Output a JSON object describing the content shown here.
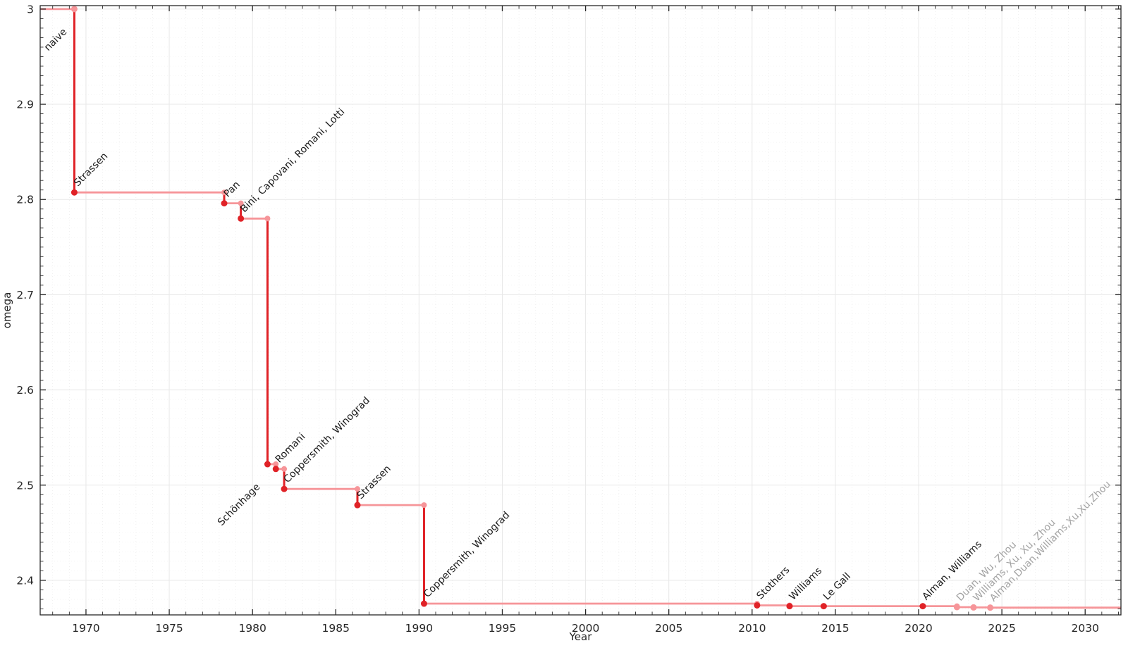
{
  "chart_data": {
    "type": "line",
    "subtype": "step-post-record-history",
    "title": "",
    "xlabel": "Year",
    "ylabel": "omega",
    "xlim": [
      1967.25,
      2032.15
    ],
    "ylim": [
      2.3637,
      3.0036
    ],
    "x_tick_values": [
      1970,
      1975,
      1980,
      1985,
      1990,
      1995,
      2000,
      2005,
      2010,
      2015,
      2020,
      2025,
      2030
    ],
    "x_tick_labels": [
      "1970",
      "1975",
      "1980",
      "1985",
      "1990",
      "1995",
      "2000",
      "2005",
      "2010",
      "2015",
      "2020",
      "2025",
      "2030"
    ],
    "x_minor_tick_step": 1,
    "y_tick_values": [
      3.0,
      2.9,
      2.8,
      2.7,
      2.6,
      2.5,
      2.4
    ],
    "y_tick_labels": [
      "3",
      "2.9",
      "2.8",
      "2.7",
      "2.6",
      "2.5",
      "2.4"
    ],
    "y_minor_tick_step": 0.01,
    "grid": {
      "major": true,
      "minor": true,
      "minor_style": "dotted"
    },
    "legend_position": "none",
    "start_omega": 3.0,
    "records": [
      {
        "label": "naive",
        "year": 1969.3,
        "omega": 3.0,
        "marker": "light",
        "label_side": "below-left",
        "provisional": false
      },
      {
        "label": "Strassen",
        "year": 1969.3,
        "omega": 2.8074,
        "marker": "dark",
        "label_side": "above-right",
        "provisional": false
      },
      {
        "label": "Pan",
        "year": 1978.3,
        "omega": 2.796,
        "marker": "dark",
        "label_side": "above-right",
        "provisional": false
      },
      {
        "label": "Bini, Capovani, Romani, Lotti",
        "year": 1979.3,
        "omega": 2.78,
        "marker": "dark",
        "label_side": "above-right",
        "provisional": false
      },
      {
        "label": "Schönhage",
        "year": 1980.9,
        "omega": 2.522,
        "marker": "dark",
        "label_side": "below-left",
        "provisional": false
      },
      {
        "label": "Romani",
        "year": 1981.4,
        "omega": 2.517,
        "marker": "dark",
        "label_side": "above-right",
        "provisional": false
      },
      {
        "label": "Coppersmith, Winograd",
        "year": 1981.9,
        "omega": 2.496,
        "marker": "dark",
        "label_side": "above-right",
        "provisional": false
      },
      {
        "label": "Strassen",
        "year": 1986.3,
        "omega": 2.479,
        "marker": "dark",
        "label_side": "above-right",
        "provisional": false
      },
      {
        "label": "Coppersmith, Winograd",
        "year": 1990.3,
        "omega": 2.3755,
        "marker": "dark",
        "label_side": "above-right",
        "provisional": false
      },
      {
        "label": "Stothers",
        "year": 2010.3,
        "omega": 2.3737,
        "marker": "dark",
        "label_side": "above-right",
        "provisional": false
      },
      {
        "label": "Williams",
        "year": 2012.25,
        "omega": 2.3729,
        "marker": "dark",
        "label_side": "above-right",
        "provisional": false
      },
      {
        "label": "Le Gall",
        "year": 2014.3,
        "omega": 2.3728639,
        "marker": "dark",
        "label_side": "above-right",
        "provisional": false
      },
      {
        "label": "Alman, Williams",
        "year": 2020.25,
        "omega": 2.3728596,
        "marker": "dark",
        "label_side": "above-right",
        "provisional": false
      },
      {
        "label": "Duan, Wu, Zhou",
        "year": 2022.3,
        "omega": 2.371866,
        "marker": "light",
        "label_side": "above-right",
        "provisional": true
      },
      {
        "label": "Williams, Xu, Xu, Zhou",
        "year": 2023.3,
        "omega": 2.371552,
        "marker": "light",
        "label_side": "above-right",
        "provisional": true
      },
      {
        "label": "Alman,Duan,Williams,Xu,Xu,Zhou",
        "year": 2024.3,
        "omega": 2.371339,
        "marker": "light",
        "label_side": "above-right",
        "provisional": true
      }
    ],
    "colors": {
      "record_red": "#e02227",
      "step_light_red": "#f69599",
      "provisional_label_gray": "#a3a3a3",
      "label_black": "#1a1a1a",
      "axis": "#262626",
      "grid_major": "#e8e8e8",
      "grid_minor": "#888888",
      "background": "#ffffff"
    }
  }
}
